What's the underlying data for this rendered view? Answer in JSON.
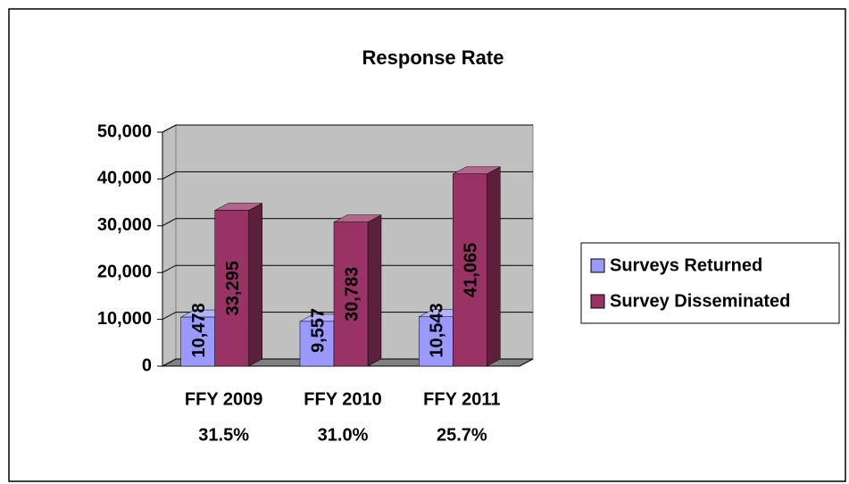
{
  "chart_data": {
    "type": "bar3d",
    "title": "Response Rate",
    "categories": [
      [
        "FFY 2009",
        "31.5%"
      ],
      [
        "FFY 2010",
        "31.0%"
      ],
      [
        "FFY 2011",
        "25.7%"
      ]
    ],
    "series": [
      {
        "name": "Surveys Returned",
        "color": "#9999ff",
        "values": [
          10478,
          9557,
          10543
        ],
        "value_labels": [
          "10,478",
          "9,557",
          "10,543"
        ]
      },
      {
        "name": "Survey Disseminated",
        "color": "#993366",
        "values": [
          33295,
          30783,
          41065
        ],
        "value_labels": [
          "33,295",
          "30,783",
          "41,065"
        ]
      }
    ],
    "ylim": [
      0,
      50000
    ],
    "yticks": [
      0,
      {
        "value": 10000,
        "label": "10,000"
      },
      {
        "value": 20000,
        "label": "20,000"
      },
      {
        "value": 30000,
        "label": "30,000"
      },
      {
        "value": 40000,
        "label": "40,000"
      },
      {
        "value": 50000,
        "label": "50,000"
      }
    ],
    "grid": true,
    "legend": "right"
  }
}
